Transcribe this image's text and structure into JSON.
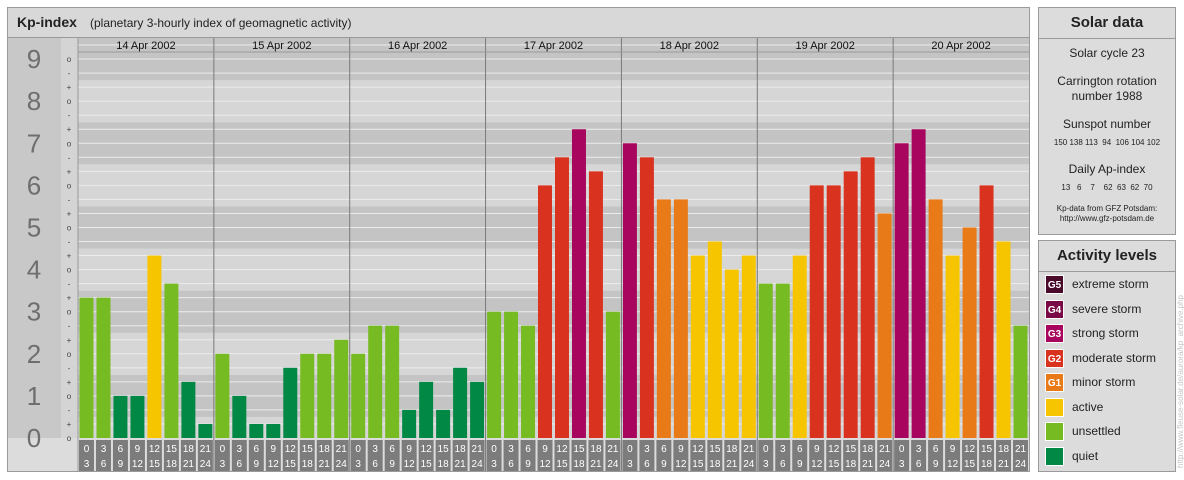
{
  "header": {
    "title": "Kp-index",
    "subtitle": "(planetary 3-hourly index of geomagnetic activity)"
  },
  "chart_data": {
    "type": "bar",
    "ylim": [
      0,
      9
    ],
    "y_ticks": [
      "0",
      "1",
      "2",
      "3",
      "4",
      "5",
      "6",
      "7",
      "8",
      "9"
    ],
    "minor_tick_labels": [
      "o",
      "+",
      "-"
    ],
    "days": [
      "14 Apr 2002",
      "15 Apr 2002",
      "16 Apr 2002",
      "17 Apr 2002",
      "18 Apr 2002",
      "19 Apr 2002",
      "20 Apr 2002"
    ],
    "interval_top": [
      "0",
      "3",
      "6",
      "9",
      "12",
      "15",
      "18",
      "21"
    ],
    "interval_bottom": [
      "3",
      "6",
      "9",
      "12",
      "15",
      "18",
      "21",
      "24"
    ],
    "values": [
      [
        3.333,
        3.333,
        1,
        1,
        4.333,
        3.667,
        1.333,
        0.333
      ],
      [
        2,
        1,
        0.333,
        0.333,
        1.667,
        2,
        2,
        2.333
      ],
      [
        2,
        2.667,
        2.667,
        0.667,
        1.333,
        0.667,
        1.667,
        1.333
      ],
      [
        3,
        3,
        2.667,
        6,
        6.667,
        7.333,
        6.333,
        3
      ],
      [
        7,
        6.667,
        5.667,
        5.667,
        4.333,
        4.667,
        4,
        4.333
      ],
      [
        3.667,
        3.667,
        4.333,
        6,
        6,
        6.333,
        6.667,
        5.333
      ],
      [
        7,
        7.333,
        5.667,
        4.333,
        5,
        6,
        4.667,
        2.667
      ]
    ],
    "grid": true
  },
  "solar": {
    "heading": "Solar data",
    "cycle": "Solar cycle 23",
    "carrington_1": "Carrington rotation",
    "carrington_2": "number 1988",
    "sunspot_label": "Sunspot number",
    "sunspot_values": "150 138 113  94  106 104 102",
    "ap_label": "Daily Ap-index",
    "ap_values": "13   6    7    62  63  62  70",
    "source_1": "Kp-data from  GFZ Potsdam:",
    "source_2": "http://www.gfz-potsdam.de"
  },
  "levels": {
    "heading": "Activity levels",
    "items": [
      {
        "badge": "G5",
        "label": "extreme storm",
        "color": "#4a0a2a"
      },
      {
        "badge": "G4",
        "label": "severe storm",
        "color": "#7a0a45"
      },
      {
        "badge": "G3",
        "label": "strong storm",
        "color": "#a8065e"
      },
      {
        "badge": "G2",
        "label": "moderate storm",
        "color": "#d9331f"
      },
      {
        "badge": "G1",
        "label": "minor storm",
        "color": "#e87a17"
      },
      {
        "badge": "",
        "label": "active",
        "color": "#f7c500"
      },
      {
        "badge": "",
        "label": "unsettled",
        "color": "#77bb22"
      },
      {
        "badge": "",
        "label": "quiet",
        "color": "#008844"
      }
    ]
  },
  "watermark": "http://www.fleuse-solar.de/aurora/kp_archive.php"
}
